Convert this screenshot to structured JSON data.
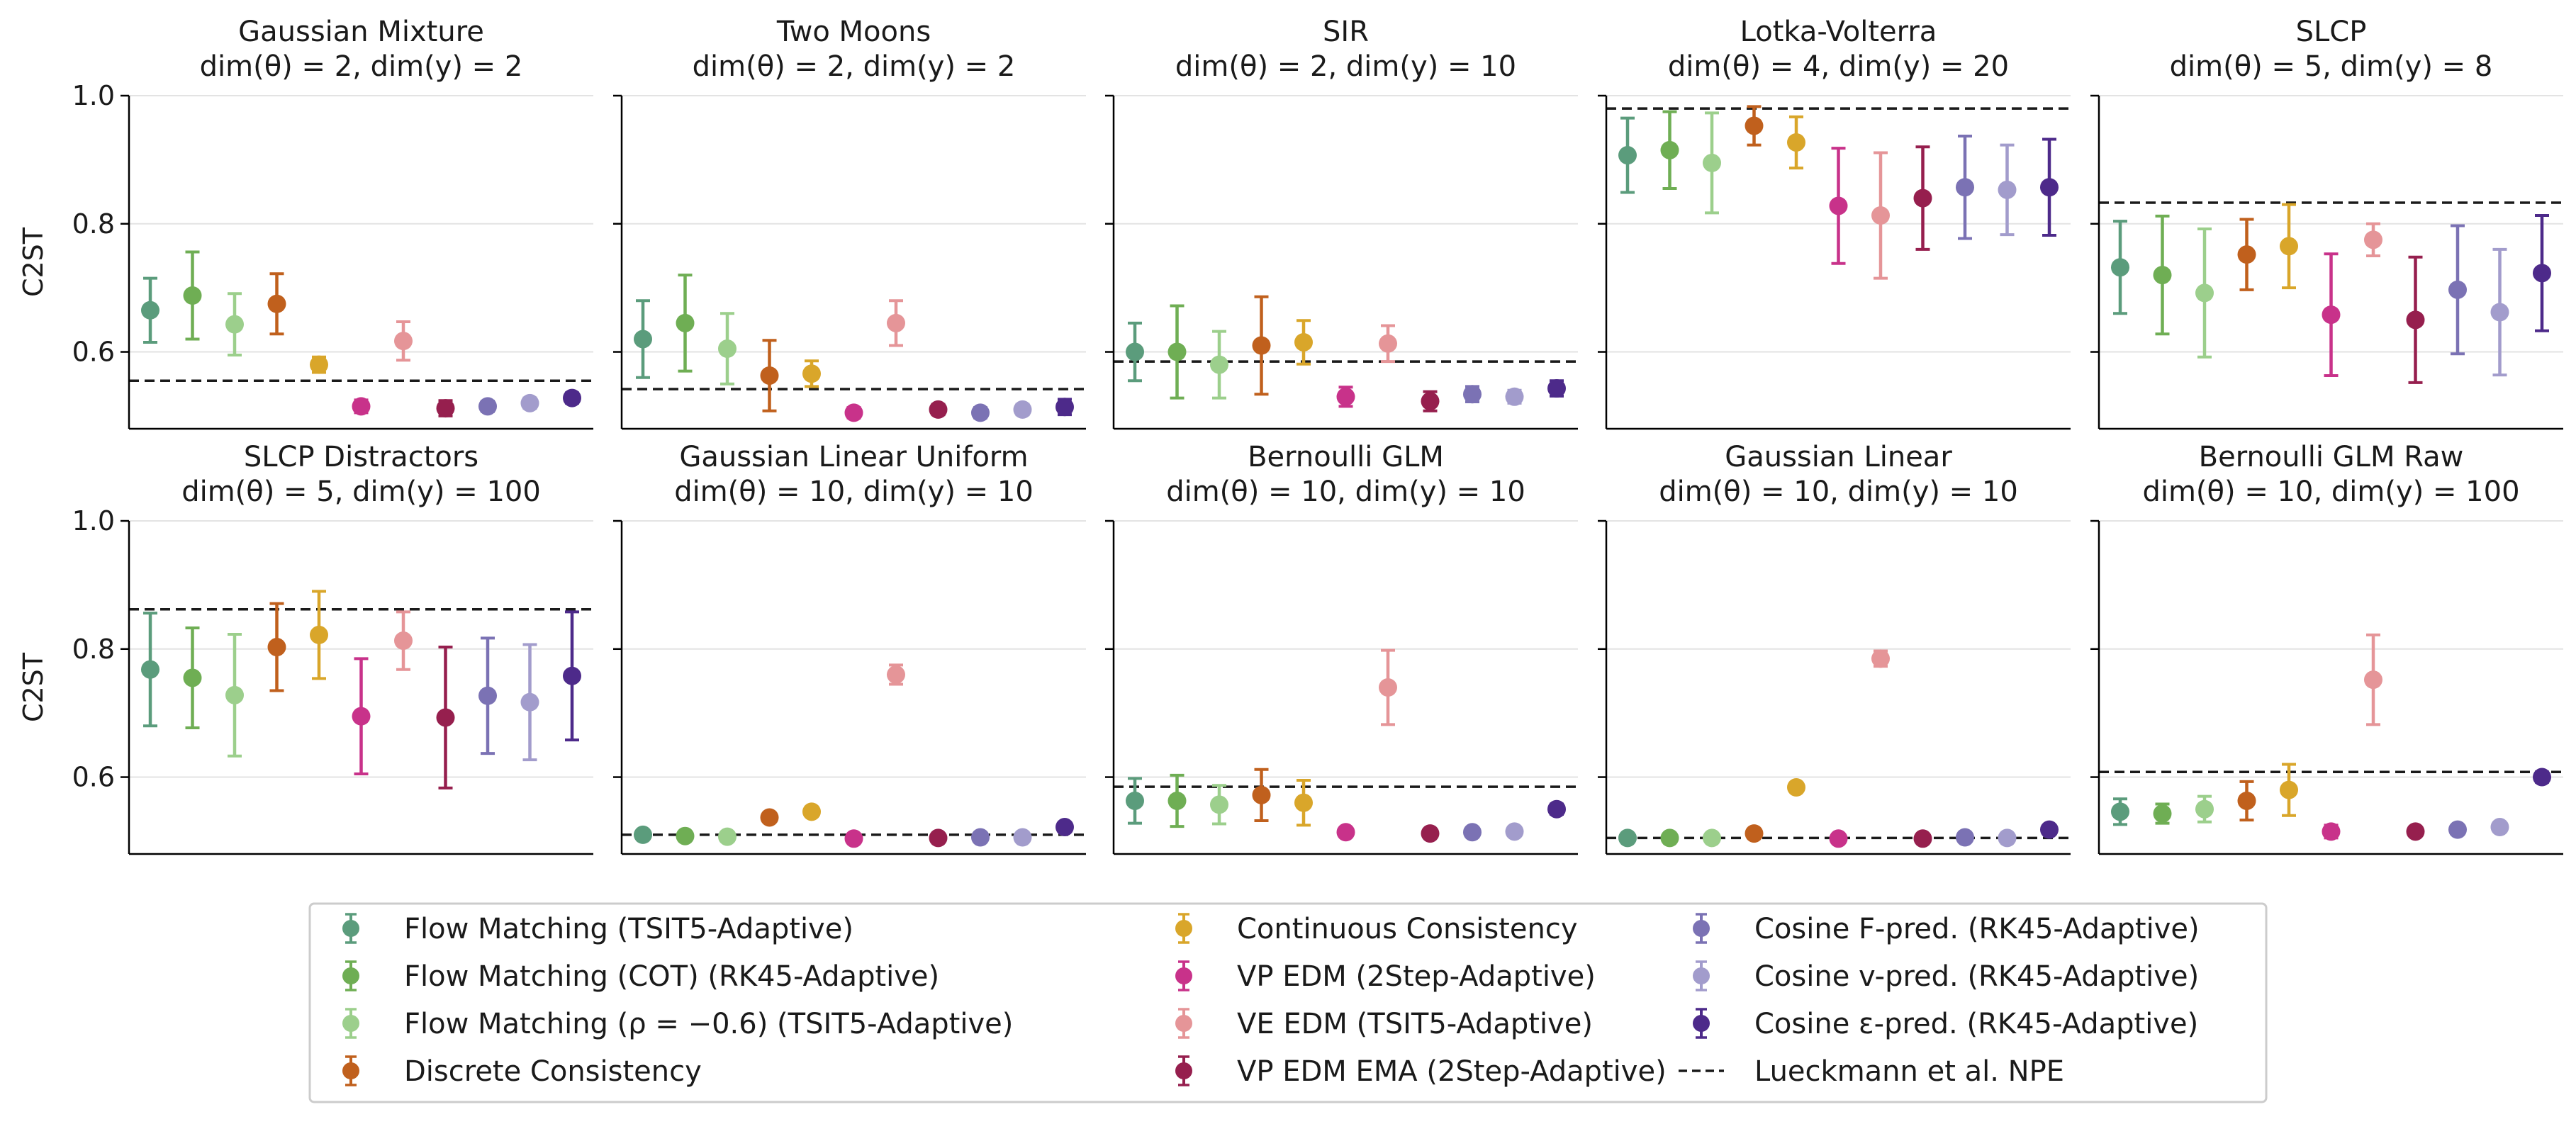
{
  "figure": {
    "ylabel": "C2ST",
    "series_colors": [
      "#5b9c7c",
      "#6fae54",
      "#9ccf8c",
      "#c0601d",
      "#d9a62a",
      "#c8328a",
      "#e59598",
      "#961f4e",
      "#7b72b4",
      "#a29ccc",
      "#4d2a8a"
    ],
    "reference_color": "#1a1a1a"
  },
  "chart_data": [
    {
      "type": "scatter",
      "title": "Gaussian Mixture",
      "subtitle": "dim(θ) = 2, dim(y) = 2",
      "ylabel": "C2ST",
      "ylim": [
        0.48,
        1.0
      ],
      "yticks": [
        "1.0",
        "0.8",
        "0.6"
      ],
      "reference_line": 0.555,
      "points": [
        {
          "y": 0.665,
          "err": 0.05
        },
        {
          "y": 0.688,
          "err": 0.068
        },
        {
          "y": 0.643,
          "err": 0.048
        },
        {
          "y": 0.675,
          "err": 0.047
        },
        {
          "y": 0.58,
          "err": 0.012
        },
        {
          "y": 0.515,
          "err": 0.01
        },
        {
          "y": 0.617,
          "err": 0.03
        },
        {
          "y": 0.512,
          "err": 0.012
        },
        {
          "y": 0.515,
          "err": 0.008
        },
        {
          "y": 0.52,
          "err": 0.008
        },
        {
          "y": 0.528,
          "err": 0.008
        }
      ]
    },
    {
      "type": "scatter",
      "title": "Two Moons",
      "subtitle": "dim(θ) = 2, dim(y) = 2",
      "ylim": [
        0.48,
        1.0
      ],
      "reference_line": 0.542,
      "points": [
        {
          "y": 0.62,
          "err": 0.06
        },
        {
          "y": 0.645,
          "err": 0.075
        },
        {
          "y": 0.605,
          "err": 0.055
        },
        {
          "y": 0.563,
          "err": 0.055
        },
        {
          "y": 0.566,
          "err": 0.02
        },
        {
          "y": 0.505,
          "err": 0.008
        },
        {
          "y": 0.645,
          "err": 0.035
        },
        {
          "y": 0.51,
          "err": 0.008
        },
        {
          "y": 0.505,
          "err": 0.008
        },
        {
          "y": 0.51,
          "err": 0.008
        },
        {
          "y": 0.514,
          "err": 0.012
        }
      ]
    },
    {
      "type": "scatter",
      "title": "SIR",
      "subtitle": "dim(θ) = 2, dim(y) = 10",
      "ylim": [
        0.48,
        1.0
      ],
      "reference_line": 0.585,
      "points": [
        {
          "y": 0.6,
          "err": 0.045
        },
        {
          "y": 0.6,
          "err": 0.072
        },
        {
          "y": 0.58,
          "err": 0.052
        },
        {
          "y": 0.61,
          "err": 0.076
        },
        {
          "y": 0.615,
          "err": 0.034
        },
        {
          "y": 0.53,
          "err": 0.015
        },
        {
          "y": 0.613,
          "err": 0.028
        },
        {
          "y": 0.523,
          "err": 0.015
        },
        {
          "y": 0.534,
          "err": 0.012
        },
        {
          "y": 0.53,
          "err": 0.01
        },
        {
          "y": 0.543,
          "err": 0.012
        }
      ]
    },
    {
      "type": "scatter",
      "title": "Lotka-Volterra",
      "subtitle": "dim(θ) = 4, dim(y) = 20",
      "ylim": [
        0.48,
        1.0
      ],
      "reference_line": 0.98,
      "points": [
        {
          "y": 0.907,
          "err": 0.058
        },
        {
          "y": 0.915,
          "err": 0.06
        },
        {
          "y": 0.895,
          "err": 0.078
        },
        {
          "y": 0.953,
          "err": 0.03
        },
        {
          "y": 0.927,
          "err": 0.04
        },
        {
          "y": 0.828,
          "err": 0.09
        },
        {
          "y": 0.813,
          "err": 0.098
        },
        {
          "y": 0.84,
          "err": 0.08
        },
        {
          "y": 0.857,
          "err": 0.08
        },
        {
          "y": 0.853,
          "err": 0.07
        },
        {
          "y": 0.857,
          "err": 0.075
        }
      ]
    },
    {
      "type": "scatter",
      "title": "SLCP",
      "subtitle": "dim(θ) = 5, dim(y) = 8",
      "ylim": [
        0.48,
        1.0
      ],
      "reference_line": 0.833,
      "points": [
        {
          "y": 0.732,
          "err": 0.072
        },
        {
          "y": 0.72,
          "err": 0.092
        },
        {
          "y": 0.692,
          "err": 0.1
        },
        {
          "y": 0.752,
          "err": 0.055
        },
        {
          "y": 0.765,
          "err": 0.065
        },
        {
          "y": 0.658,
          "err": 0.095
        },
        {
          "y": 0.775,
          "err": 0.025
        },
        {
          "y": 0.65,
          "err": 0.098
        },
        {
          "y": 0.697,
          "err": 0.1
        },
        {
          "y": 0.662,
          "err": 0.098
        },
        {
          "y": 0.723,
          "err": 0.09
        }
      ]
    },
    {
      "type": "scatter",
      "title": "SLCP Distractors",
      "subtitle": "dim(θ) = 5, dim(y) = 100",
      "ylabel": "C2ST",
      "ylim": [
        0.48,
        1.0
      ],
      "yticks": [
        "1.0",
        "0.8",
        "0.6"
      ],
      "reference_line": 0.862,
      "points": [
        {
          "y": 0.768,
          "err": 0.088
        },
        {
          "y": 0.755,
          "err": 0.078
        },
        {
          "y": 0.728,
          "err": 0.095
        },
        {
          "y": 0.803,
          "err": 0.068
        },
        {
          "y": 0.822,
          "err": 0.068
        },
        {
          "y": 0.695,
          "err": 0.09
        },
        {
          "y": 0.813,
          "err": 0.045
        },
        {
          "y": 0.693,
          "err": 0.11
        },
        {
          "y": 0.727,
          "err": 0.09
        },
        {
          "y": 0.717,
          "err": 0.09
        },
        {
          "y": 0.758,
          "err": 0.1
        }
      ]
    },
    {
      "type": "scatter",
      "title": "Gaussian Linear Uniform",
      "subtitle": "dim(θ) = 10, dim(y) = 10",
      "ylim": [
        0.48,
        1.0
      ],
      "reference_line": 0.51,
      "points": [
        {
          "y": 0.51,
          "err": 0.005
        },
        {
          "y": 0.508,
          "err": 0.004
        },
        {
          "y": 0.507,
          "err": 0.004
        },
        {
          "y": 0.537,
          "err": 0.006
        },
        {
          "y": 0.546,
          "err": 0.005
        },
        {
          "y": 0.504,
          "err": 0.004
        },
        {
          "y": 0.76,
          "err": 0.015
        },
        {
          "y": 0.505,
          "err": 0.004
        },
        {
          "y": 0.506,
          "err": 0.004
        },
        {
          "y": 0.506,
          "err": 0.004
        },
        {
          "y": 0.522,
          "err": 0.007
        }
      ]
    },
    {
      "type": "scatter",
      "title": "Bernoulli GLM",
      "subtitle": "dim(θ) = 10, dim(y) = 10",
      "ylim": [
        0.48,
        1.0
      ],
      "reference_line": 0.585,
      "points": [
        {
          "y": 0.563,
          "err": 0.035
        },
        {
          "y": 0.563,
          "err": 0.04
        },
        {
          "y": 0.557,
          "err": 0.03
        },
        {
          "y": 0.572,
          "err": 0.04
        },
        {
          "y": 0.56,
          "err": 0.035
        },
        {
          "y": 0.514,
          "err": 0.007
        },
        {
          "y": 0.74,
          "err": 0.058
        },
        {
          "y": 0.512,
          "err": 0.006
        },
        {
          "y": 0.514,
          "err": 0.006
        },
        {
          "y": 0.515,
          "err": 0.006
        },
        {
          "y": 0.55,
          "err": 0.008
        }
      ]
    },
    {
      "type": "scatter",
      "title": "Gaussian Linear",
      "subtitle": "dim(θ) = 10, dim(y) = 10",
      "ylim": [
        0.48,
        1.0
      ],
      "reference_line": 0.505,
      "points": [
        {
          "y": 0.505,
          "err": 0.004
        },
        {
          "y": 0.505,
          "err": 0.004
        },
        {
          "y": 0.505,
          "err": 0.004
        },
        {
          "y": 0.512,
          "err": 0.005
        },
        {
          "y": 0.584,
          "err": 0.006
        },
        {
          "y": 0.504,
          "err": 0.004
        },
        {
          "y": 0.785,
          "err": 0.012
        },
        {
          "y": 0.504,
          "err": 0.004
        },
        {
          "y": 0.506,
          "err": 0.004
        },
        {
          "y": 0.505,
          "err": 0.004
        },
        {
          "y": 0.518,
          "err": 0.006
        }
      ]
    },
    {
      "type": "scatter",
      "title": "Bernoulli GLM Raw",
      "subtitle": "dim(θ) = 10, dim(y) = 100",
      "ylim": [
        0.48,
        1.0
      ],
      "reference_line": 0.608,
      "points": [
        {
          "y": 0.546,
          "err": 0.02
        },
        {
          "y": 0.543,
          "err": 0.015
        },
        {
          "y": 0.55,
          "err": 0.02
        },
        {
          "y": 0.563,
          "err": 0.03
        },
        {
          "y": 0.58,
          "err": 0.04
        },
        {
          "y": 0.515,
          "err": 0.01
        },
        {
          "y": 0.752,
          "err": 0.07
        },
        {
          "y": 0.515,
          "err": 0.006
        },
        {
          "y": 0.518,
          "err": 0.006
        },
        {
          "y": 0.522,
          "err": 0.006
        },
        {
          "y": 0.6,
          "err": 0.008
        }
      ]
    }
  ],
  "legend": {
    "entries": [
      {
        "label": "Flow Matching  (TSIT5-Adaptive)",
        "color": "#5b9c7c",
        "kind": "errorbar"
      },
      {
        "label": "Flow Matching (COT)  (RK45-Adaptive)",
        "color": "#6fae54",
        "kind": "errorbar"
      },
      {
        "label": "Flow Matching (ρ = −0.6)  (TSIT5-Adaptive)",
        "color": "#9ccf8c",
        "kind": "errorbar"
      },
      {
        "label": "Discrete Consistency",
        "color": "#c0601d",
        "kind": "errorbar"
      },
      {
        "label": "Continuous Consistency",
        "color": "#d9a62a",
        "kind": "errorbar"
      },
      {
        "label": "VP EDM  (2Step-Adaptive)",
        "color": "#c8328a",
        "kind": "errorbar"
      },
      {
        "label": "VE EDM  (TSIT5-Adaptive)",
        "color": "#e59598",
        "kind": "errorbar"
      },
      {
        "label": "VP EDM EMA  (2Step-Adaptive)",
        "color": "#961f4e",
        "kind": "errorbar"
      },
      {
        "label": "Cosine F-pred.  (RK45-Adaptive)",
        "color": "#7b72b4",
        "kind": "errorbar"
      },
      {
        "label": "Cosine v-pred.  (RK45-Adaptive)",
        "color": "#a29ccc",
        "kind": "errorbar"
      },
      {
        "label": "Cosine ε-pred.  (RK45-Adaptive)",
        "color": "#4d2a8a",
        "kind": "errorbar"
      },
      {
        "label": "Lueckmann et al. NPE",
        "color": "#1a1a1a",
        "kind": "dashed"
      }
    ]
  }
}
